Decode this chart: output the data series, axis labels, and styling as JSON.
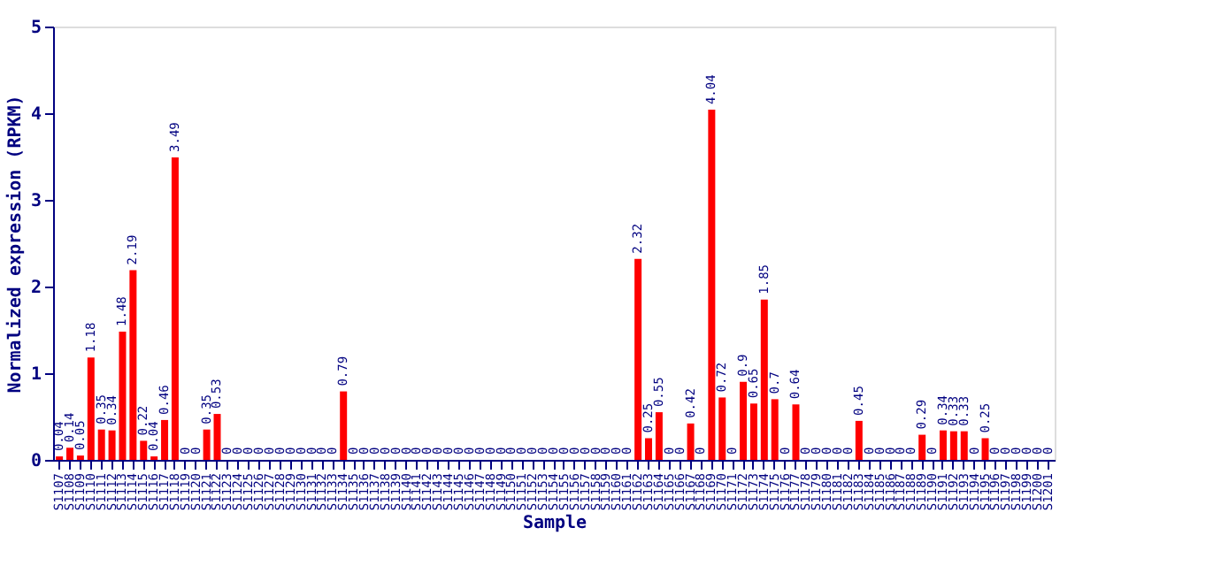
{
  "chart_data": {
    "type": "bar",
    "xlabel": "Sample",
    "ylabel": "Normalized expression (RPKM)",
    "categories": [
      "S1107",
      "S1108",
      "S1109",
      "S1110",
      "S1111",
      "S1112",
      "S1113",
      "S1114",
      "S1115",
      "S1116",
      "S1117",
      "S1118",
      "S1119",
      "S1120",
      "S1121",
      "S1122",
      "S1123",
      "S1124",
      "S1125",
      "S1126",
      "S1127",
      "S1128",
      "S1129",
      "S1130",
      "S1131",
      "S1132",
      "S1133",
      "S1134",
      "S1135",
      "S1136",
      "S1137",
      "S1138",
      "S1139",
      "S1140",
      "S1141",
      "S1142",
      "S1143",
      "S1144",
      "S1145",
      "S1146",
      "S1147",
      "S1148",
      "S1149",
      "S1150",
      "S1151",
      "S1152",
      "S1153",
      "S1154",
      "S1155",
      "S1156",
      "S1157",
      "S1158",
      "S1159",
      "S1160",
      "S1161",
      "S1162",
      "S1163",
      "S1164",
      "S1165",
      "S1166",
      "S1167",
      "S1168",
      "S1169",
      "S1170",
      "S1171",
      "S1172",
      "S1173",
      "S1174",
      "S1175",
      "S1176",
      "S1177",
      "S1178",
      "S1179",
      "S1180",
      "S1181",
      "S1182",
      "S1183",
      "S1184",
      "S1185",
      "S1186",
      "S1187",
      "S1188",
      "S1189",
      "S1190",
      "S1191",
      "S1192",
      "S1193",
      "S1194",
      "S1195",
      "S1196",
      "S1197",
      "S1198",
      "S1199",
      "S1200",
      "S1201"
    ],
    "values": [
      0.04,
      0.14,
      0.05,
      1.18,
      0.35,
      0.34,
      1.48,
      2.19,
      0.22,
      0.04,
      0.46,
      3.49,
      0,
      0,
      0.35,
      0.53,
      0,
      0,
      0,
      0,
      0,
      0,
      0,
      0,
      0,
      0,
      0,
      0.79,
      0,
      0,
      0,
      0,
      0,
      0,
      0,
      0,
      0,
      0,
      0,
      0,
      0,
      0,
      0,
      0,
      0,
      0,
      0,
      0,
      0,
      0,
      0,
      0,
      0,
      0,
      0,
      2.32,
      0.25,
      0.55,
      0,
      0,
      0.42,
      0,
      4.04,
      0.72,
      0,
      0.9,
      0.65,
      1.85,
      0.7,
      0,
      0.64,
      0,
      0,
      0,
      0,
      0,
      0.45,
      0,
      0,
      0,
      0,
      0,
      0.29,
      0,
      0.34,
      0.33,
      0.33,
      0,
      0.25,
      0,
      0,
      0,
      0,
      0,
      0
    ],
    "color": "#ff0000",
    "ylim": [
      0,
      5
    ],
    "yticks": [
      0,
      1,
      2,
      3,
      4,
      5
    ],
    "grid": false,
    "data_labels": true
  }
}
